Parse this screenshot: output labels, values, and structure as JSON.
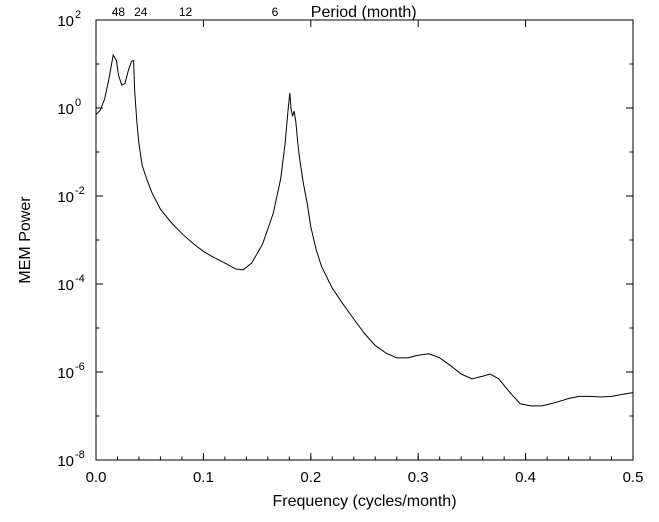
{
  "chart_data": {
    "type": "line",
    "title": "",
    "xlabel": "Frequency (cycles/month)",
    "ylabel": "MEM Power",
    "top_axis_label": "Period (month)",
    "xlim": [
      0.0,
      0.5
    ],
    "ylim": [
      1e-08,
      100
    ],
    "y_scale": "log",
    "grid": false,
    "x_ticks": [
      0.0,
      0.1,
      0.2,
      0.3,
      0.4,
      0.5
    ],
    "x_tick_labels": [
      "0.0",
      "0.1",
      "0.2",
      "0.3",
      "0.4",
      "0.5"
    ],
    "y_ticks": [
      1e-08,
      1e-06,
      0.0001,
      0.01,
      1,
      100
    ],
    "y_tick_labels": [
      {
        "base": "10",
        "exp": "-8"
      },
      {
        "base": "10",
        "exp": "-6"
      },
      {
        "base": "10",
        "exp": "-4"
      },
      {
        "base": "10",
        "exp": "-2"
      },
      {
        "base": "10",
        "exp": "0"
      },
      {
        "base": "10",
        "exp": "2"
      }
    ],
    "top_ticks": [
      {
        "label": "48",
        "period": 48
      },
      {
        "label": "24",
        "period": 24
      },
      {
        "label": "12",
        "period": 12
      },
      {
        "label": "6",
        "period": 6
      }
    ],
    "series": [
      {
        "x": [
          0.0,
          0.004,
          0.008,
          0.012,
          0.016,
          0.019,
          0.021,
          0.024,
          0.027,
          0.03,
          0.033,
          0.035,
          0.036,
          0.038,
          0.04,
          0.043,
          0.047,
          0.052,
          0.06,
          0.07,
          0.08,
          0.09,
          0.1,
          0.11,
          0.12,
          0.13,
          0.137,
          0.145,
          0.155,
          0.165,
          0.172,
          0.176,
          0.179,
          0.1805,
          0.1815,
          0.183,
          0.1845,
          0.186,
          0.188,
          0.19,
          0.193,
          0.197,
          0.2,
          0.205,
          0.21,
          0.22,
          0.23,
          0.24,
          0.25,
          0.26,
          0.27,
          0.28,
          0.29,
          0.3,
          0.31,
          0.32,
          0.33,
          0.34,
          0.35,
          0.36,
          0.367,
          0.375,
          0.385,
          0.395,
          0.405,
          0.415,
          0.42,
          0.43,
          0.44,
          0.45,
          0.46,
          0.47,
          0.48,
          0.49,
          0.5
        ],
        "y": [
          0.7,
          0.9,
          1.6,
          4.5,
          16,
          12,
          5.5,
          3.3,
          3.6,
          7,
          11.5,
          12,
          2.5,
          0.5,
          0.15,
          0.05,
          0.025,
          0.012,
          0.005,
          0.0025,
          0.0014,
          0.00085,
          0.00055,
          0.0004,
          0.0003,
          0.00022,
          0.00021,
          0.0003,
          0.0008,
          0.004,
          0.025,
          0.15,
          1.0,
          2.2,
          1.0,
          0.65,
          0.85,
          0.5,
          0.15,
          0.06,
          0.02,
          0.006,
          0.002,
          0.0006,
          0.00025,
          8e-05,
          3.5e-05,
          1.6e-05,
          7.5e-06,
          4e-06,
          2.7e-06,
          2.1e-06,
          2.1e-06,
          2.4e-06,
          2.6e-06,
          2.1e-06,
          1.4e-06,
          9e-07,
          7e-07,
          8e-07,
          9e-07,
          7e-07,
          3.5e-07,
          1.9e-07,
          1.7e-07,
          1.7e-07,
          1.8e-07,
          2.1e-07,
          2.5e-07,
          2.8e-07,
          2.8e-07,
          2.7e-07,
          2.8e-07,
          3.1e-07,
          3.4e-07
        ]
      }
    ]
  }
}
